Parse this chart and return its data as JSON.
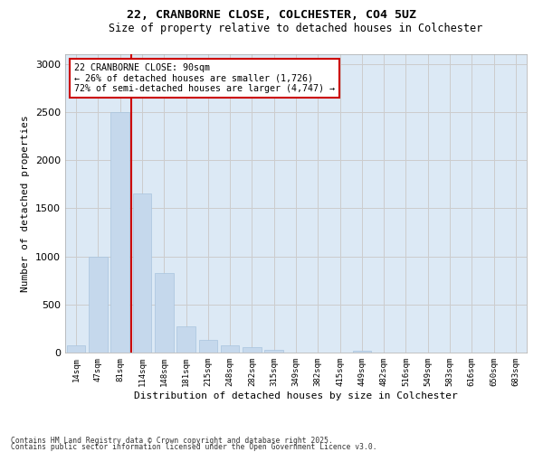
{
  "title1": "22, CRANBORNE CLOSE, COLCHESTER, CO4 5UZ",
  "title2": "Size of property relative to detached houses in Colchester",
  "xlabel": "Distribution of detached houses by size in Colchester",
  "ylabel": "Number of detached properties",
  "categories": [
    "14sqm",
    "47sqm",
    "81sqm",
    "114sqm",
    "148sqm",
    "181sqm",
    "215sqm",
    "248sqm",
    "282sqm",
    "315sqm",
    "349sqm",
    "382sqm",
    "415sqm",
    "449sqm",
    "482sqm",
    "516sqm",
    "549sqm",
    "583sqm",
    "616sqm",
    "650sqm",
    "683sqm"
  ],
  "values": [
    75,
    1000,
    2500,
    1650,
    830,
    270,
    130,
    75,
    55,
    25,
    0,
    0,
    0,
    20,
    0,
    0,
    0,
    0,
    0,
    0,
    0
  ],
  "bar_color": "#c5d8ec",
  "bar_edge_color": "#a8c4de",
  "vline_color": "#cc0000",
  "vline_x": 2.5,
  "annotation_text": "22 CRANBORNE CLOSE: 90sqm\n← 26% of detached houses are smaller (1,726)\n72% of semi-detached houses are larger (4,747) →",
  "annotation_box_color": "#ffffff",
  "annotation_box_edge": "#cc0000",
  "ylim": [
    0,
    3100
  ],
  "yticks": [
    0,
    500,
    1000,
    1500,
    2000,
    2500,
    3000
  ],
  "grid_color": "#cccccc",
  "bg_color": "#dce9f5",
  "footer1": "Contains HM Land Registry data © Crown copyright and database right 2025.",
  "footer2": "Contains public sector information licensed under the Open Government Licence v3.0."
}
